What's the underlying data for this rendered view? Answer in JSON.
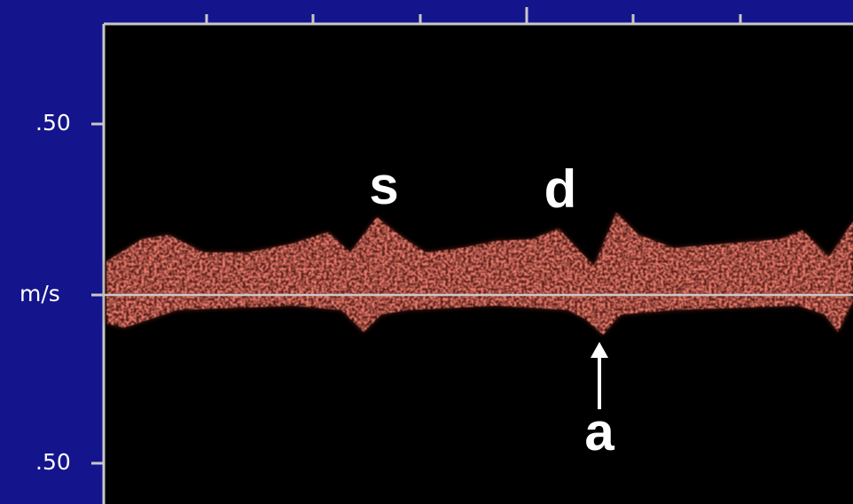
{
  "scale": {
    "top_label": ".50",
    "unit_label": "m/s",
    "bottom_label": ".50"
  },
  "annotations": [
    {
      "label": "s"
    },
    {
      "label": "d"
    },
    {
      "label": "a"
    }
  ]
}
